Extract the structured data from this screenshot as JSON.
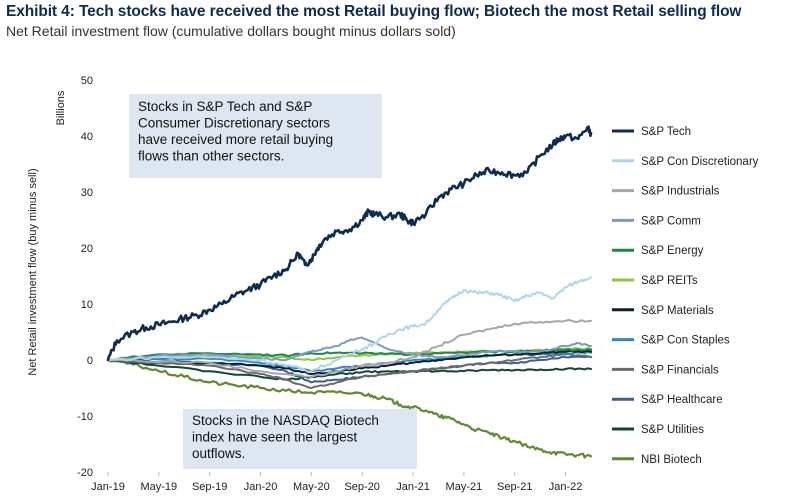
{
  "header": {
    "title": "Exhibit 4: Tech stocks have received the most Retail buying flow; Biotech the most Retail selling flow",
    "subtitle": "Net Retail investment flow (cumulative dollars bought minus dollars sold)"
  },
  "chart_data": {
    "type": "line",
    "ylabel": "Net Retail investment flow (buy minus sell)",
    "yunit": "Billions",
    "ylim": [
      -20,
      50
    ],
    "yticks": [
      -20,
      -10,
      0,
      10,
      20,
      30,
      40,
      50
    ],
    "xlim": [
      0,
      38
    ],
    "xtick_labels": [
      "Jan-19",
      "May-19",
      "Sep-19",
      "Jan-20",
      "May-20",
      "Sep-20",
      "Jan-21",
      "May-21",
      "Sep-21",
      "Jan-22"
    ],
    "xtick_months": [
      0,
      4,
      8,
      12,
      16,
      20,
      24,
      28,
      32,
      36
    ],
    "grid": false,
    "legend_position": "right",
    "annotations": [
      {
        "lines": [
          "Stocks in S&P Tech and S&P",
          "Consumer Discretionary sectors",
          "have received more retail buying",
          "flows than other sectors."
        ]
      },
      {
        "lines": [
          "Stocks in the NASDAQ Biotech",
          "index have seen the largest",
          "outflows."
        ]
      }
    ],
    "series": [
      {
        "name": "S&P Tech",
        "color": "#0e2c4f",
        "width": 2.6,
        "x": [
          0,
          0.7,
          2,
          3,
          4,
          5,
          6,
          7,
          8,
          9,
          10,
          11,
          12,
          13,
          14,
          15,
          15.5,
          16,
          16.5,
          17,
          18,
          19,
          20,
          20.5,
          21,
          22,
          23,
          23.5,
          24,
          25,
          26,
          27,
          28,
          29,
          30,
          31,
          32,
          33,
          34,
          35,
          35.5,
          36,
          37,
          37.7,
          38
        ],
        "values": [
          0,
          3.5,
          5,
          5.8,
          6.3,
          6.8,
          7.5,
          8,
          9,
          10,
          11.5,
          12.5,
          13.5,
          15,
          16.2,
          19,
          17,
          18,
          20,
          21.5,
          23,
          23.3,
          25,
          26.5,
          26,
          25.5,
          26,
          25,
          24.5,
          26,
          29,
          30.5,
          31.5,
          33,
          33.8,
          33.5,
          33,
          33.5,
          36.5,
          38.5,
          39.5,
          40,
          39.5,
          41.5,
          40.5
        ]
      },
      {
        "name": "S&P Con Discretionary",
        "color": "#aed4ef",
        "width": 2,
        "x": [
          0,
          4,
          8,
          12,
          14,
          16,
          18,
          20,
          21,
          22,
          23,
          24,
          25,
          26,
          27,
          28,
          29,
          30,
          31,
          32,
          33,
          34,
          35,
          36,
          37,
          38
        ],
        "values": [
          0,
          0.5,
          0.5,
          0,
          -1,
          -2,
          0,
          2,
          3,
          4.5,
          5.5,
          6,
          6.5,
          9,
          11,
          12.5,
          12,
          12,
          11.5,
          10.5,
          11.5,
          12,
          11,
          13,
          14,
          14.8
        ]
      },
      {
        "name": "S&P Industrials",
        "color": "#a6a6a6",
        "width": 2,
        "x": [
          0,
          8,
          12,
          16,
          18,
          20,
          22,
          24,
          26,
          28,
          30,
          32,
          34,
          36,
          38
        ],
        "values": [
          0,
          -0.5,
          -2,
          -3,
          -2,
          -1,
          -0.5,
          0.5,
          2.5,
          4.5,
          5.5,
          6.5,
          6.8,
          7,
          7
        ]
      },
      {
        "name": "S&P Comm",
        "color": "#7b9cc0",
        "width": 2,
        "x": [
          0,
          4,
          8,
          12,
          14,
          16,
          17,
          18,
          19,
          20,
          21,
          22,
          24,
          26,
          28,
          30,
          32,
          34,
          36,
          37,
          38
        ],
        "values": [
          0,
          0.8,
          1,
          0.3,
          0,
          1.5,
          2,
          2.5,
          3.5,
          4,
          3,
          2,
          1,
          0.5,
          0.8,
          1.5,
          1.5,
          1.5,
          2.5,
          3,
          2.5
        ]
      },
      {
        "name": "S&P Energy",
        "color": "#1a8a45",
        "width": 2,
        "x": [
          0,
          4,
          8,
          12,
          14,
          16,
          18,
          20,
          22,
          24,
          26,
          28,
          30,
          32,
          34,
          36,
          38
        ],
        "values": [
          0,
          1,
          1.2,
          1,
          0.8,
          1.2,
          1.3,
          1.2,
          1.1,
          1,
          1.2,
          1.3,
          1.5,
          1.5,
          1.6,
          1.8,
          1.8
        ]
      },
      {
        "name": "S&P REITs",
        "color": "#8cc63f",
        "width": 2,
        "x": [
          0,
          4,
          8,
          12,
          14,
          16,
          18,
          20,
          22,
          24,
          26,
          28,
          30,
          32,
          34,
          36,
          38
        ],
        "values": [
          0,
          0.8,
          0.7,
          0.6,
          0.5,
          0,
          0.5,
          0.8,
          1,
          1.2,
          1.3,
          1.5,
          1.6,
          1.6,
          1.8,
          2,
          2
        ]
      },
      {
        "name": "S&P Materials",
        "color": "#0b1f2d",
        "width": 2,
        "x": [
          0,
          4,
          8,
          12,
          14,
          16,
          18,
          20,
          22,
          24,
          26,
          28,
          30,
          32,
          34,
          36,
          38
        ],
        "values": [
          0,
          -0.3,
          -0.5,
          -1,
          -1.5,
          -2.5,
          -2,
          -1.5,
          -1,
          -0.5,
          0,
          0.5,
          0.8,
          1,
          1.2,
          1.5,
          1.5
        ]
      },
      {
        "name": "S&P Con Staples",
        "color": "#2e86c8",
        "width": 2,
        "x": [
          0,
          4,
          8,
          12,
          14,
          16,
          18,
          20,
          22,
          24,
          26,
          28,
          30,
          32,
          34,
          36,
          38
        ],
        "values": [
          0,
          0.2,
          0.2,
          -0.5,
          -1,
          -2,
          -1.5,
          -1,
          -0.5,
          0,
          0.2,
          0.5,
          0.8,
          1,
          1,
          1.2,
          1.3
        ]
      },
      {
        "name": "S&P Financials",
        "color": "#6b6b6b",
        "width": 2,
        "x": [
          0,
          4,
          8,
          12,
          14,
          16,
          18,
          20,
          22,
          24,
          26,
          28,
          30,
          32,
          34,
          36,
          38
        ],
        "values": [
          0,
          -0.5,
          -1,
          -2.5,
          -3.5,
          -5,
          -4,
          -3,
          -2.5,
          -2,
          -1.5,
          -1,
          -0.5,
          0,
          0.5,
          1,
          0.5
        ]
      },
      {
        "name": "S&P Healthcare",
        "color": "#3f5f8a",
        "width": 2,
        "x": [
          0,
          4,
          8,
          12,
          14,
          16,
          18,
          20,
          22,
          24,
          26,
          28,
          30,
          32,
          34,
          36,
          38
        ],
        "values": [
          0,
          -0.5,
          -0.5,
          -1,
          -2,
          -4,
          -3.5,
          -3,
          -2.5,
          -2,
          -1.5,
          -1,
          -0.5,
          -0.5,
          0,
          0.5,
          0.5
        ]
      },
      {
        "name": "S&P Utilities",
        "color": "#0b4a2a",
        "width": 2,
        "x": [
          0,
          4,
          8,
          12,
          14,
          16,
          18,
          20,
          22,
          24,
          26,
          28,
          30,
          32,
          34,
          36,
          38
        ],
        "values": [
          0,
          -1,
          -2,
          -3,
          -3.5,
          -3,
          -2.5,
          -2.2,
          -2,
          -2,
          -2,
          -2,
          -1.8,
          -1.8,
          -1.7,
          -1.6,
          -1.6
        ]
      },
      {
        "name": "NBI Biotech",
        "color": "#5e8a2e",
        "width": 2.2,
        "x": [
          0,
          2,
          4,
          6,
          8,
          10,
          12,
          14,
          16,
          18,
          20,
          21,
          22,
          23,
          24,
          25,
          26,
          27,
          28,
          29,
          30,
          31,
          32,
          33,
          34,
          35,
          36,
          37,
          38
        ],
        "values": [
          0,
          -0.8,
          -2,
          -3,
          -4,
          -4.5,
          -5,
          -5.5,
          -5.8,
          -5.8,
          -6,
          -6.5,
          -7,
          -8,
          -8.5,
          -9,
          -10,
          -10.5,
          -11.5,
          -12.5,
          -13,
          -14,
          -14.5,
          -15.5,
          -16,
          -16.5,
          -16.8,
          -17,
          -17.2
        ]
      }
    ]
  }
}
